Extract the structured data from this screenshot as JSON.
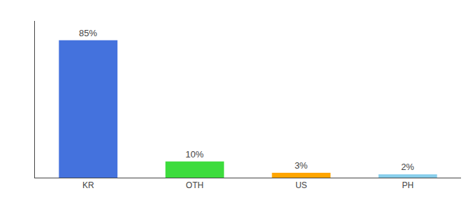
{
  "chart_data": {
    "type": "bar",
    "categories": [
      "KR",
      "OTH",
      "US",
      "PH"
    ],
    "values": [
      85,
      10,
      3,
      2
    ],
    "value_labels": [
      "85%",
      "10%",
      "3%",
      "2%"
    ],
    "colors": [
      "#4472dd",
      "#3ddc3d",
      "#ffa500",
      "#87ceeb"
    ],
    "ylim": [
      0,
      97
    ],
    "data_labels": true,
    "tick_labels": "x",
    "grid": false
  }
}
